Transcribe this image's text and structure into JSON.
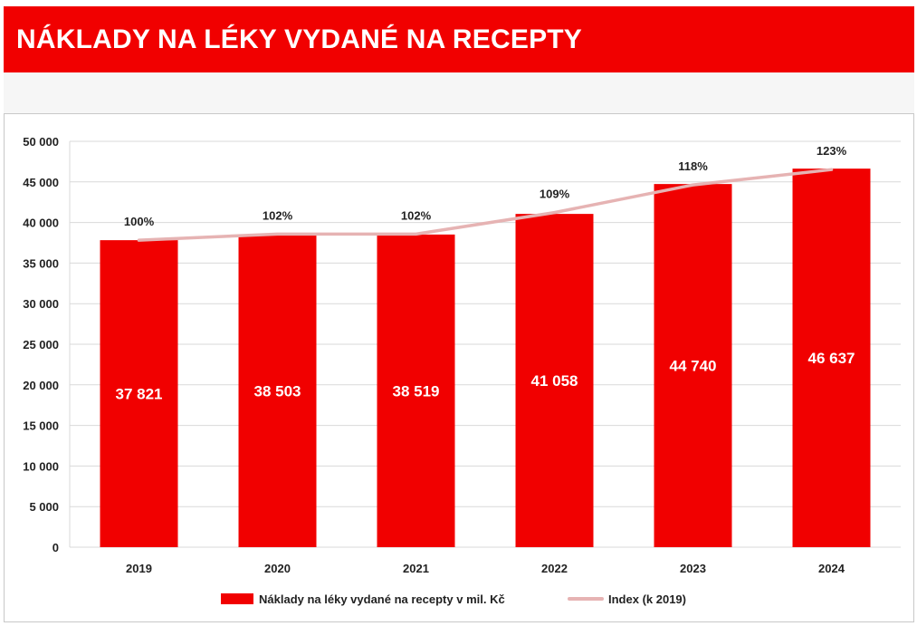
{
  "header": {
    "title": "NÁKLADY NA LÉKY VYDANÉ NA RECEPTY"
  },
  "colors": {
    "bar": "#f10000",
    "line": "#e6b3b3",
    "grid": "#d9d9d9"
  },
  "chart_data": {
    "type": "bar",
    "categories": [
      "2019",
      "2020",
      "2021",
      "2022",
      "2023",
      "2024"
    ],
    "series": [
      {
        "name": "Náklady na léky vydané na recepty v mil. Kč",
        "type": "bar",
        "values": [
          37821,
          38503,
          38519,
          41058,
          44740,
          46637
        ],
        "labels": [
          "37 821",
          "38 503",
          "38 519",
          "41 058",
          "44 740",
          "46 637"
        ]
      },
      {
        "name": "Index (k 2019)",
        "type": "line",
        "values": [
          100,
          102,
          102,
          109,
          118,
          123
        ],
        "labels": [
          "100%",
          "102%",
          "102%",
          "109%",
          "118%",
          "123%"
        ]
      }
    ],
    "ylim": [
      0,
      50000
    ],
    "yticks": [
      0,
      5000,
      10000,
      15000,
      20000,
      25000,
      30000,
      35000,
      40000,
      45000,
      50000
    ],
    "ytick_labels": [
      "0",
      "5 000",
      "10 000",
      "15 000",
      "20 000",
      "25 000",
      "30 000",
      "35 000",
      "40 000",
      "45 000",
      "50 000"
    ],
    "grid": true,
    "legend": "bottom"
  }
}
